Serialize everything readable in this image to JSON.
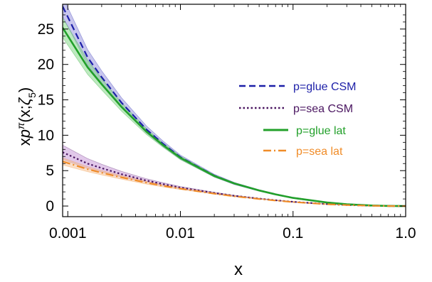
{
  "chart_data": {
    "type": "line",
    "xscale": "log",
    "xlim": [
      0.0009,
      1.0
    ],
    "ylim": [
      -1.5,
      28.5
    ],
    "xlabel": "x",
    "ylabel": {
      "prefix": "x",
      "p": "p",
      "sup": "π",
      "open": "(x;",
      "zeta": "ζ",
      "sub": "5",
      "close": ")"
    },
    "x_ticks": [
      {
        "value": 0.001,
        "label": "0.001"
      },
      {
        "value": 0.01,
        "label": "0.01"
      },
      {
        "value": 0.1,
        "label": "0.1"
      },
      {
        "value": 1.0,
        "label": "1.0"
      }
    ],
    "y_ticks": [
      {
        "value": 0,
        "label": "0"
      },
      {
        "value": 5,
        "label": "5"
      },
      {
        "value": 10,
        "label": "10"
      },
      {
        "value": 15,
        "label": "15"
      },
      {
        "value": 20,
        "label": "20"
      },
      {
        "value": 25,
        "label": "25"
      }
    ],
    "grid": false,
    "legend_position": "right",
    "colors": {
      "glue_csm": "#1c1fa8",
      "glue_csm_band": "#9a98e0",
      "sea_csm": "#4a1560",
      "sea_csm_band": "#c89ad8",
      "glue_lat": "#22a02a",
      "glue_lat_band": "#86d98a",
      "sea_lat": "#f08c28",
      "sea_lat_band": "#f8c49a"
    },
    "series": [
      {
        "name": "p=glue CSM",
        "style": "dashed",
        "color_key": "glue_csm",
        "x": [
          0.0009,
          0.0015,
          0.002,
          0.003,
          0.005,
          0.007,
          0.01,
          0.02,
          0.03,
          0.05,
          0.07,
          0.1,
          0.2,
          0.3,
          0.5,
          0.7,
          1.0
        ],
        "y": [
          28.2,
          21.0,
          18.2,
          14.6,
          10.8,
          8.8,
          6.9,
          4.3,
          3.2,
          2.2,
          1.65,
          1.15,
          0.5,
          0.25,
          0.08,
          0.02,
          0.0
        ],
        "y_low": [
          26.8,
          19.9,
          17.3,
          13.9,
          10.3,
          8.4,
          6.6,
          4.1,
          3.05,
          2.1,
          1.57,
          1.1,
          0.47,
          0.23,
          0.07,
          0.02,
          0.0
        ],
        "y_high": [
          29.6,
          22.1,
          19.1,
          15.3,
          11.3,
          9.2,
          7.2,
          4.5,
          3.35,
          2.3,
          1.73,
          1.2,
          0.53,
          0.27,
          0.09,
          0.03,
          0.0
        ]
      },
      {
        "name": "p=sea CSM",
        "style": "dotted",
        "color_key": "sea_csm",
        "x": [
          0.0009,
          0.0015,
          0.002,
          0.003,
          0.005,
          0.007,
          0.01,
          0.02,
          0.03,
          0.05,
          0.07,
          0.1,
          0.2,
          0.3,
          0.5,
          0.7,
          1.0
        ],
        "y": [
          7.6,
          6.0,
          5.35,
          4.5,
          3.6,
          3.1,
          2.6,
          1.85,
          1.45,
          1.05,
          0.82,
          0.6,
          0.28,
          0.15,
          0.05,
          0.01,
          0.0
        ],
        "y_low": [
          6.6,
          5.3,
          4.8,
          4.1,
          3.35,
          2.9,
          2.45,
          1.75,
          1.38,
          1.0,
          0.78,
          0.57,
          0.26,
          0.14,
          0.04,
          0.01,
          0.0
        ],
        "y_high": [
          8.6,
          6.7,
          5.9,
          4.9,
          3.85,
          3.3,
          2.75,
          1.95,
          1.52,
          1.1,
          0.86,
          0.63,
          0.3,
          0.16,
          0.06,
          0.02,
          0.0
        ]
      },
      {
        "name": "p=glue lat",
        "style": "solid",
        "color_key": "glue_lat",
        "x": [
          0.0009,
          0.0015,
          0.002,
          0.003,
          0.005,
          0.007,
          0.01,
          0.02,
          0.03,
          0.05,
          0.07,
          0.1,
          0.2,
          0.3,
          0.5,
          0.7,
          1.0
        ],
        "y": [
          25.2,
          19.6,
          17.2,
          14.0,
          10.5,
          8.6,
          6.8,
          4.25,
          3.2,
          2.2,
          1.65,
          1.15,
          0.5,
          0.25,
          0.08,
          0.02,
          0.0
        ],
        "y_low": [
          23.8,
          18.6,
          16.4,
          13.4,
          10.1,
          8.3,
          6.55,
          4.1,
          3.08,
          2.12,
          1.59,
          1.1,
          0.47,
          0.23,
          0.07,
          0.02,
          0.0
        ],
        "y_high": [
          26.6,
          20.6,
          18.0,
          14.6,
          10.9,
          8.9,
          7.05,
          4.4,
          3.32,
          2.28,
          1.71,
          1.2,
          0.53,
          0.27,
          0.09,
          0.03,
          0.0
        ]
      },
      {
        "name": "p=sea lat",
        "style": "dashdot",
        "color_key": "sea_lat",
        "x": [
          0.0009,
          0.0015,
          0.002,
          0.003,
          0.005,
          0.007,
          0.01,
          0.02,
          0.03,
          0.05,
          0.07,
          0.1,
          0.2,
          0.3,
          0.5,
          0.7,
          1.0
        ],
        "y": [
          6.3,
          5.2,
          4.7,
          4.05,
          3.3,
          2.85,
          2.45,
          1.75,
          1.38,
          1.0,
          0.78,
          0.57,
          0.26,
          0.14,
          0.04,
          0.01,
          0.0
        ],
        "y_low": [
          5.8,
          4.85,
          4.4,
          3.8,
          3.1,
          2.7,
          2.33,
          1.67,
          1.32,
          0.96,
          0.75,
          0.55,
          0.25,
          0.13,
          0.04,
          0.01,
          0.0
        ],
        "y_high": [
          6.8,
          5.55,
          5.0,
          4.3,
          3.5,
          3.0,
          2.57,
          1.83,
          1.44,
          1.04,
          0.81,
          0.59,
          0.27,
          0.15,
          0.05,
          0.01,
          0.0
        ]
      }
    ]
  }
}
